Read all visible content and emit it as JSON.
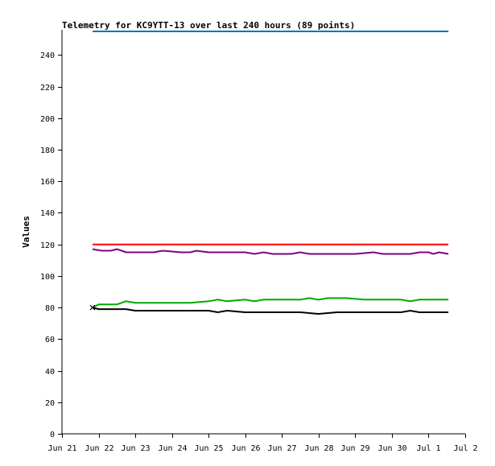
{
  "chart_data": {
    "type": "line",
    "title": "Telemetry for KC9YTT-13 over last 240 hours (89 points)",
    "xlabel": "",
    "ylabel": "Values",
    "xlim": [
      "2023-06-21",
      "2023-07-02"
    ],
    "ylim": [
      0,
      256
    ],
    "x_ticks": [
      {
        "x": "2023-06-21",
        "label": "Jun 21"
      },
      {
        "x": "2023-06-22",
        "label": "Jun 22"
      },
      {
        "x": "2023-06-23",
        "label": "Jun 23"
      },
      {
        "x": "2023-06-24",
        "label": "Jun 24"
      },
      {
        "x": "2023-06-25",
        "label": "Jun 25"
      },
      {
        "x": "2023-06-26",
        "label": "Jun 26"
      },
      {
        "x": "2023-06-27",
        "label": "Jun 27"
      },
      {
        "x": "2023-06-28",
        "label": "Jun 28"
      },
      {
        "x": "2023-06-29",
        "label": "Jun 29"
      },
      {
        "x": "2023-06-30",
        "label": "Jun 30"
      },
      {
        "x": "2023-07-01",
        "label": "Jul 1"
      },
      {
        "x": "2023-07-02",
        "label": "Jul 2"
      }
    ],
    "y_ticks": [
      0,
      20,
      40,
      60,
      80,
      100,
      120,
      140,
      160,
      180,
      200,
      220,
      240
    ],
    "grid": false,
    "legend": "none",
    "series": [
      {
        "color": "#0077aa",
        "points": [
          [
            "2023-06-21 20:00",
            255
          ],
          [
            "2023-07-01 13:00",
            255
          ]
        ]
      },
      {
        "color": "#ff0000",
        "points": [
          [
            "2023-06-21 20:00",
            120
          ],
          [
            "2023-07-01 13:00",
            120
          ]
        ]
      },
      {
        "color": "#800080",
        "points": [
          [
            "2023-06-21 20:00",
            117
          ],
          [
            "2023-06-22 02:00",
            116
          ],
          [
            "2023-06-22 08:00",
            116
          ],
          [
            "2023-06-22 12:00",
            117
          ],
          [
            "2023-06-22 18:00",
            115
          ],
          [
            "2023-06-23 06:00",
            115
          ],
          [
            "2023-06-23 12:00",
            115
          ],
          [
            "2023-06-23 18:00",
            116
          ],
          [
            "2023-06-24 06:00",
            115
          ],
          [
            "2023-06-24 12:00",
            115
          ],
          [
            "2023-06-24 16:00",
            116
          ],
          [
            "2023-06-25 00:00",
            115
          ],
          [
            "2023-06-25 12:00",
            115
          ],
          [
            "2023-06-26 00:00",
            115
          ],
          [
            "2023-06-26 06:00",
            114
          ],
          [
            "2023-06-26 12:00",
            115
          ],
          [
            "2023-06-26 18:00",
            114
          ],
          [
            "2023-06-27 06:00",
            114
          ],
          [
            "2023-06-27 12:00",
            115
          ],
          [
            "2023-06-27 18:00",
            114
          ],
          [
            "2023-06-28 12:00",
            114
          ],
          [
            "2023-06-29 00:00",
            114
          ],
          [
            "2023-06-29 12:00",
            115
          ],
          [
            "2023-06-29 18:00",
            114
          ],
          [
            "2023-06-30 12:00",
            114
          ],
          [
            "2023-06-30 18:00",
            115
          ],
          [
            "2023-07-01 00:00",
            115
          ],
          [
            "2023-07-01 03:00",
            114
          ],
          [
            "2023-07-01 07:00",
            115
          ],
          [
            "2023-07-01 13:00",
            114
          ]
        ]
      },
      {
        "color": "#00aa00",
        "points": [
          [
            "2023-06-21 20:00",
            80
          ],
          [
            "2023-06-22 00:00",
            82
          ],
          [
            "2023-06-22 12:00",
            82
          ],
          [
            "2023-06-22 18:00",
            84
          ],
          [
            "2023-06-23 00:00",
            83
          ],
          [
            "2023-06-24 12:00",
            83
          ],
          [
            "2023-06-25 00:00",
            84
          ],
          [
            "2023-06-25 06:00",
            85
          ],
          [
            "2023-06-25 12:00",
            84
          ],
          [
            "2023-06-26 00:00",
            85
          ],
          [
            "2023-06-26 06:00",
            84
          ],
          [
            "2023-06-26 12:00",
            85
          ],
          [
            "2023-06-27 12:00",
            85
          ],
          [
            "2023-06-27 18:00",
            86
          ],
          [
            "2023-06-28 00:00",
            85
          ],
          [
            "2023-06-28 06:00",
            86
          ],
          [
            "2023-06-28 18:00",
            86
          ],
          [
            "2023-06-29 06:00",
            85
          ],
          [
            "2023-06-30 06:00",
            85
          ],
          [
            "2023-06-30 12:00",
            84
          ],
          [
            "2023-06-30 18:00",
            85
          ],
          [
            "2023-07-01 13:00",
            85
          ]
        ]
      },
      {
        "color": "#000000",
        "points": [
          [
            "2023-06-21 20:00",
            80
          ],
          [
            "2023-06-22 00:00",
            79
          ],
          [
            "2023-06-22 18:00",
            79
          ],
          [
            "2023-06-23 00:00",
            78
          ],
          [
            "2023-06-24 12:00",
            78
          ],
          [
            "2023-06-25 00:00",
            78
          ],
          [
            "2023-06-25 06:00",
            77
          ],
          [
            "2023-06-25 12:00",
            78
          ],
          [
            "2023-06-26 00:00",
            77
          ],
          [
            "2023-06-27 12:00",
            77
          ],
          [
            "2023-06-28 00:00",
            76
          ],
          [
            "2023-06-28 12:00",
            77
          ],
          [
            "2023-06-29 12:00",
            77
          ],
          [
            "2023-06-30 06:00",
            77
          ],
          [
            "2023-06-30 12:00",
            78
          ],
          [
            "2023-06-30 18:00",
            77
          ],
          [
            "2023-07-01 13:00",
            77
          ]
        ]
      }
    ]
  }
}
